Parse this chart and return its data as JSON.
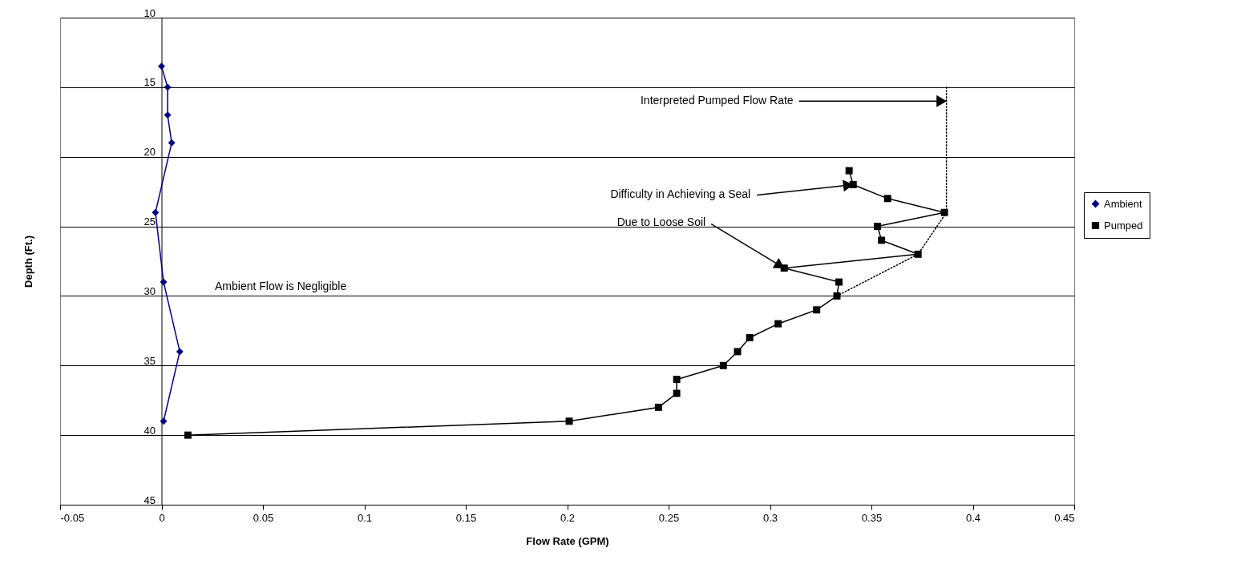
{
  "chart_data": {
    "type": "line",
    "xlabel": "Flow Rate (GPM)",
    "ylabel": "Depth (Ft.)",
    "xlim": [
      -0.05,
      0.45
    ],
    "xticks": [
      -0.05,
      0,
      0.05,
      0.1,
      0.15,
      0.2,
      0.25,
      0.3,
      0.35,
      0.4,
      0.45
    ],
    "ylim": [
      45,
      10
    ],
    "yticks": [
      10,
      15,
      20,
      25,
      30,
      35,
      40,
      45
    ],
    "grid": "y",
    "legend": "right",
    "series": [
      {
        "name": "Ambient",
        "color": "#000080",
        "marker": "diamond",
        "line_style": "solid",
        "x": [
          0,
          0.003,
          0.003,
          0.005,
          -0.003,
          0.001,
          0.009,
          0.001
        ],
        "values": [
          13.5,
          15,
          17,
          19,
          24,
          29,
          34,
          39
        ]
      },
      {
        "name": "Pumped",
        "color": "#000000",
        "marker": "square",
        "line_style": "solid",
        "x": [
          0.339,
          0.341,
          0.358,
          0.386,
          0.353,
          0.355,
          0.373,
          0.307,
          0.334,
          0.333,
          0.323,
          0.304,
          0.29,
          0.284,
          0.277,
          0.254,
          0.254,
          0.245,
          0.201,
          0.013
        ],
        "values": [
          21,
          22,
          23,
          24,
          25,
          26,
          27,
          28,
          29,
          30,
          31,
          32,
          33,
          34,
          35,
          36,
          37,
          38,
          39,
          40
        ]
      },
      {
        "color": "#000000",
        "marker": "none",
        "line_style": "dotted",
        "x": [
          0.387,
          0.387,
          0.373,
          0.333
        ],
        "values": [
          15,
          24,
          27,
          30
        ]
      }
    ],
    "annotations": [
      {
        "text": "Interpreted Pumped Flow Rate",
        "x": 0.387,
        "y": 16
      },
      {
        "text": "Difficulty in Achieving a Seal",
        "x": 0.341,
        "y": 22
      },
      {
        "text": "Due to Loose Soil",
        "x": 0.307,
        "y": 28
      },
      "Ambient Flow is Negligible"
    ]
  }
}
